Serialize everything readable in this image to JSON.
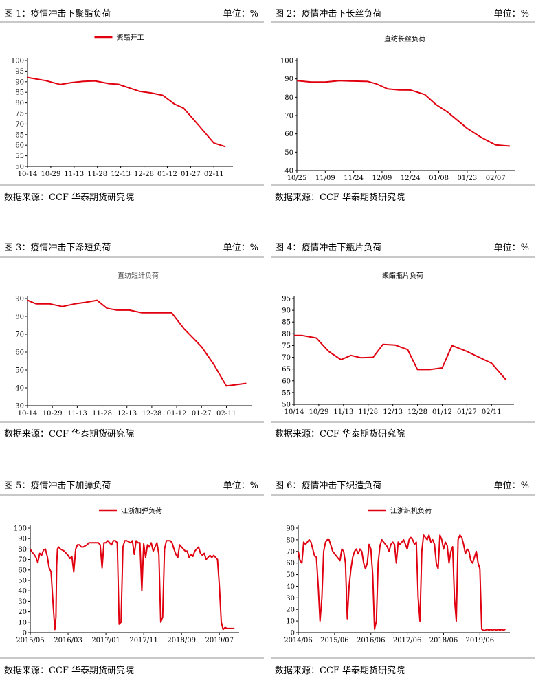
{
  "panels": [
    {
      "title": "图 1：疫情冲击下聚酯负荷",
      "unit": "单位：%",
      "source": "数据来源：CCF  华泰期货研究院",
      "chart": {
        "type": "line",
        "legend": "聚酯开工",
        "legend_style": "line",
        "title": "",
        "yticks": [
          50,
          55,
          60,
          65,
          70,
          75,
          80,
          85,
          90,
          95,
          100
        ],
        "ylim": [
          50,
          100
        ],
        "xticks": [
          "10-14",
          "10-29",
          "11-13",
          "11-28",
          "12-13",
          "12-28",
          "01-12",
          "01-27",
          "02-11"
        ],
        "xrange": [
          0,
          8.7
        ],
        "x": [
          0,
          0.8,
          1.4,
          1.9,
          2.4,
          2.9,
          3.5,
          3.9,
          4.3,
          4.8,
          5.3,
          5.8,
          6.3,
          6.7,
          7.3,
          8.0,
          8.5
        ],
        "values": [
          92,
          90.5,
          88.7,
          89.6,
          90.2,
          90.4,
          89.1,
          88.8,
          87.3,
          85.5,
          84.7,
          83.6,
          79.5,
          77.5,
          70,
          61,
          59.3
        ]
      }
    },
    {
      "title": "图 2：疫情冲击下长丝负荷",
      "unit": "单位：%",
      "source": "数据来源：CCF  华泰期货研究院",
      "chart": {
        "type": "line",
        "legend": "",
        "legend_style": "none",
        "title": "直纺长丝负荷",
        "yticks": [
          40,
          50,
          60,
          70,
          80,
          90,
          100
        ],
        "ylim": [
          40,
          100
        ],
        "xticks": [
          "10/25",
          "11/09",
          "11/24",
          "12/09",
          "12/24",
          "01/08",
          "01/23",
          "02/07"
        ],
        "xrange": [
          0,
          7.6
        ],
        "x": [
          0,
          0.5,
          1.0,
          1.5,
          2.0,
          2.5,
          2.8,
          3.2,
          3.6,
          4.0,
          4.5,
          4.9,
          5.3,
          6.0,
          6.5,
          7.0,
          7.5
        ],
        "values": [
          89,
          88.3,
          88.3,
          89,
          88.8,
          88.6,
          87.3,
          84.5,
          84,
          83.9,
          81.5,
          76,
          72,
          63,
          58,
          54,
          53.3
        ]
      }
    },
    {
      "title": "图 3：疫情冲击下涤短负荷",
      "unit": "单位：%",
      "source": "数据来源：CCF  华泰期货研究院",
      "chart": {
        "type": "line",
        "legend": "",
        "legend_style": "none",
        "title": "直纺短纤负荷",
        "yticks": [
          30,
          40,
          50,
          60,
          70,
          80,
          90
        ],
        "ylim": [
          30,
          90
        ],
        "xticks": [
          "10-14",
          "10-29",
          "11-13",
          "11-28",
          "12-13",
          "12-28",
          "01-12",
          "01-27",
          "02-11"
        ],
        "xrange": [
          0,
          8.9
        ],
        "x": [
          0,
          0.35,
          0.9,
          1.4,
          1.9,
          2.4,
          2.8,
          3.2,
          3.6,
          4.1,
          4.6,
          5.1,
          5.3,
          5.8,
          6.3,
          7.0,
          7.5,
          8.0,
          8.8
        ],
        "values": [
          89,
          87,
          87,
          85.5,
          87,
          88,
          89,
          84.5,
          83.5,
          83.5,
          82,
          82,
          82,
          82,
          73,
          63,
          53,
          41,
          42.5
        ]
      }
    },
    {
      "title": "图 4：疫情冲击下瓶片负荷",
      "unit": "单位：%",
      "source": "数据来源：CCF  华泰期货研究院",
      "chart": {
        "type": "line",
        "legend": "",
        "legend_style": "none",
        "title": "聚酯瓶片负荷",
        "yticks": [
          50,
          55,
          60,
          65,
          70,
          75,
          80,
          85,
          90,
          95
        ],
        "ylim": [
          50,
          95
        ],
        "xticks": [
          "10/14",
          "10/29",
          "11/13",
          "11/28",
          "12/13",
          "12/28",
          "01/12",
          "01/27",
          "02/11"
        ],
        "xrange": [
          0,
          8.8
        ],
        "x": [
          0,
          0.3,
          0.9,
          1.4,
          1.9,
          2.3,
          2.7,
          3.2,
          3.6,
          4.1,
          4.6,
          5.0,
          5.5,
          6.0,
          6.4,
          7.0,
          7.5,
          8.0,
          8.6
        ],
        "values": [
          79.3,
          79.3,
          78.2,
          72.5,
          69,
          70.8,
          69.8,
          70,
          75.5,
          75.2,
          73.3,
          64.8,
          64.8,
          65.5,
          75,
          72.5,
          70,
          67.5,
          60.3
        ]
      }
    },
    {
      "title": "图 5：疫情冲击下加弹负荷",
      "unit": "单位：%",
      "source": "数据来源：CCF  华泰期货研究院",
      "chart": {
        "type": "line",
        "legend": "江浙加弹负荷",
        "legend_style": "line",
        "title": "",
        "yticks": [
          0,
          10,
          20,
          30,
          40,
          50,
          60,
          70,
          80,
          90,
          100
        ],
        "ylim": [
          0,
          100
        ],
        "xticks": [
          "2015/05",
          "2016/03",
          "2017/01",
          "2017/11",
          "2018/09",
          "2019/07"
        ],
        "xrange": [
          0,
          5.45
        ],
        "x": [
          0,
          0.05,
          0.1,
          0.15,
          0.2,
          0.25,
          0.3,
          0.35,
          0.4,
          0.45,
          0.5,
          0.55,
          0.6,
          0.65,
          0.68,
          0.7,
          0.72,
          0.75,
          0.8,
          0.85,
          0.9,
          0.95,
          1.0,
          1.05,
          1.1,
          1.15,
          1.2,
          1.25,
          1.3,
          1.35,
          1.4,
          1.5,
          1.55,
          1.6,
          1.65,
          1.7,
          1.75,
          1.8,
          1.85,
          1.9,
          1.95,
          2.0,
          2.05,
          2.1,
          2.15,
          2.2,
          2.25,
          2.3,
          2.35,
          2.4,
          2.45,
          2.5,
          2.55,
          2.6,
          2.65,
          2.7,
          2.75,
          2.8,
          2.85,
          2.9,
          2.95,
          3.0,
          3.05,
          3.1,
          3.15,
          3.2,
          3.25,
          3.3,
          3.35,
          3.4,
          3.45,
          3.5,
          3.55,
          3.6,
          3.65,
          3.7,
          3.75,
          3.8,
          3.85,
          3.9,
          3.95,
          4.0,
          4.05,
          4.1,
          4.15,
          4.2,
          4.25,
          4.3,
          4.35,
          4.4,
          4.45,
          4.5,
          4.55,
          4.6,
          4.65,
          4.7,
          4.75,
          4.8,
          4.85,
          4.9,
          4.95,
          5.0,
          5.05,
          5.1,
          5.15,
          5.2,
          5.25,
          5.3,
          5.35,
          5.4
        ],
        "values": [
          80,
          77,
          75,
          72,
          67,
          76,
          74,
          79,
          80,
          73,
          62,
          58,
          30,
          3,
          15,
          65,
          80,
          82,
          80,
          79,
          78,
          76,
          74,
          71,
          73,
          58,
          80,
          84,
          84,
          82,
          82,
          84,
          86,
          86,
          86,
          86,
          86,
          86,
          84,
          62,
          86,
          86,
          88,
          86,
          84,
          88,
          88,
          86,
          8,
          10,
          82,
          88,
          88,
          87,
          86,
          88,
          75,
          88,
          86,
          86,
          40,
          85,
          72,
          84,
          82,
          86,
          78,
          82,
          86,
          75,
          10,
          15,
          80,
          88,
          88,
          88,
          86,
          80,
          75,
          72,
          84,
          82,
          80,
          78,
          78,
          72,
          75,
          73,
          78,
          80,
          82,
          76,
          74,
          76,
          70,
          72,
          74,
          72,
          74,
          72,
          70,
          45,
          10,
          3,
          5,
          4,
          4,
          4,
          4,
          4
        ]
      }
    },
    {
      "title": "图 6：疫情冲击下织造负荷",
      "unit": "单位：%",
      "source": "数据来源：CCF  华泰期货研究院",
      "chart": {
        "type": "line",
        "legend": "江浙织机负荷",
        "legend_style": "line",
        "title": "",
        "yticks": [
          0,
          10,
          20,
          30,
          40,
          50,
          60,
          70,
          80,
          90
        ],
        "ylim": [
          0,
          90
        ],
        "xticks": [
          "2014/06",
          "2015/06",
          "2016/06",
          "2017/06",
          "2018/06",
          "2019/06"
        ],
        "xrange": [
          0,
          5.75
        ],
        "x": [
          0,
          0.05,
          0.1,
          0.15,
          0.2,
          0.25,
          0.3,
          0.35,
          0.4,
          0.45,
          0.5,
          0.55,
          0.6,
          0.65,
          0.7,
          0.75,
          0.8,
          0.85,
          0.9,
          0.95,
          1.0,
          1.05,
          1.1,
          1.15,
          1.2,
          1.25,
          1.3,
          1.35,
          1.4,
          1.45,
          1.5,
          1.55,
          1.6,
          1.65,
          1.7,
          1.75,
          1.8,
          1.85,
          1.9,
          1.95,
          2.0,
          2.05,
          2.1,
          2.15,
          2.2,
          2.25,
          2.3,
          2.35,
          2.4,
          2.45,
          2.5,
          2.55,
          2.6,
          2.65,
          2.7,
          2.75,
          2.8,
          2.85,
          2.9,
          2.95,
          3.0,
          3.05,
          3.1,
          3.15,
          3.2,
          3.25,
          3.3,
          3.35,
          3.4,
          3.45,
          3.5,
          3.55,
          3.6,
          3.65,
          3.7,
          3.75,
          3.8,
          3.85,
          3.9,
          3.95,
          4.0,
          4.05,
          4.1,
          4.15,
          4.2,
          4.25,
          4.3,
          4.35,
          4.4,
          4.45,
          4.5,
          4.55,
          4.6,
          4.65,
          4.7,
          4.75,
          4.8,
          4.85,
          4.9,
          4.95,
          5.0,
          5.05,
          5.1,
          5.15,
          5.2,
          5.25,
          5.3,
          5.35,
          5.4,
          5.45,
          5.5,
          5.55,
          5.6,
          5.65,
          5.7
        ],
        "values": [
          70,
          62,
          60,
          78,
          76,
          78,
          80,
          78,
          72,
          66,
          65,
          40,
          10,
          30,
          70,
          78,
          80,
          80,
          75,
          70,
          68,
          66,
          64,
          62,
          72,
          70,
          60,
          12,
          40,
          55,
          65,
          70,
          72,
          68,
          72,
          70,
          60,
          55,
          60,
          76,
          72,
          50,
          3,
          10,
          60,
          75,
          80,
          78,
          76,
          74,
          70,
          76,
          78,
          76,
          60,
          78,
          76,
          78,
          80,
          76,
          72,
          80,
          82,
          80,
          76,
          78,
          30,
          10,
          70,
          84,
          82,
          80,
          84,
          78,
          80,
          76,
          60,
          55,
          84,
          80,
          72,
          78,
          75,
          60,
          70,
          74,
          30,
          10,
          80,
          84,
          82,
          76,
          68,
          72,
          70,
          62,
          60,
          65,
          70,
          60,
          55,
          3,
          2,
          2,
          3,
          2,
          3,
          2,
          3,
          2,
          3,
          2,
          3,
          2,
          3
        ]
      }
    }
  ]
}
